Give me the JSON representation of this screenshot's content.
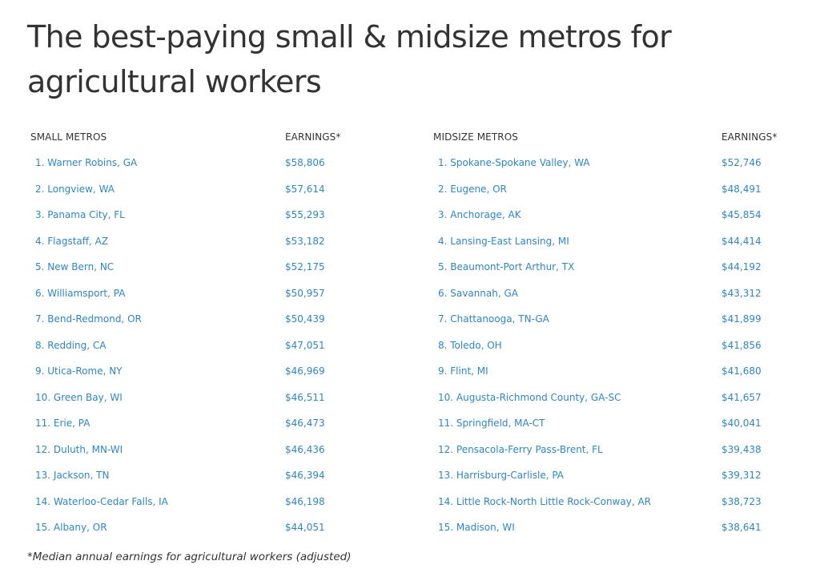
{
  "title": "The best-paying small & midsize metros for agricultural workers",
  "tables": [
    {
      "header_name": "SMALL METROS",
      "header_value": "EARNINGS*",
      "rows": [
        {
          "name": "1. Warner Robins, GA",
          "value": "$58,806"
        },
        {
          "name": "2. Longview, WA",
          "value": "$57,614"
        },
        {
          "name": "3. Panama City, FL",
          "value": "$55,293"
        },
        {
          "name": "4. Flagstaff, AZ",
          "value": "$53,182"
        },
        {
          "name": "5. New Bern, NC",
          "value": "$52,175"
        },
        {
          "name": "6. Williamsport, PA",
          "value": "$50,957"
        },
        {
          "name": "7. Bend-Redmond, OR",
          "value": "$50,439"
        },
        {
          "name": "8. Redding, CA",
          "value": "$47,051"
        },
        {
          "name": "9. Utica-Rome, NY",
          "value": "$46,969"
        },
        {
          "name": "10. Green Bay, WI",
          "value": "$46,511"
        },
        {
          "name": "11. Erie, PA",
          "value": "$46,473"
        },
        {
          "name": "12. Duluth, MN-WI",
          "value": "$46,436"
        },
        {
          "name": "13. Jackson, TN",
          "value": "$46,394"
        },
        {
          "name": "14. Waterloo-Cedar Falls, IA",
          "value": "$46,198"
        },
        {
          "name": "15. Albany, OR",
          "value": "$44,051"
        }
      ]
    },
    {
      "header_name": "MIDSIZE METROS",
      "header_value": "EARNINGS*",
      "rows": [
        {
          "name": "1. Spokane-Spokane Valley, WA",
          "value": "$52,746"
        },
        {
          "name": "2. Eugene, OR",
          "value": "$48,491"
        },
        {
          "name": "3. Anchorage, AK",
          "value": "$45,854"
        },
        {
          "name": "4. Lansing-East Lansing, MI",
          "value": "$44,414"
        },
        {
          "name": "5. Beaumont-Port Arthur, TX",
          "value": "$44,192"
        },
        {
          "name": "6. Savannah, GA",
          "value": "$43,312"
        },
        {
          "name": "7. Chattanooga, TN-GA",
          "value": "$41,899"
        },
        {
          "name": "8. Toledo, OH",
          "value": "$41,856"
        },
        {
          "name": "9. Flint, MI",
          "value": "$41,680"
        },
        {
          "name": "10. Augusta-Richmond County, GA-SC",
          "value": "$41,657"
        },
        {
          "name": "11. Springfield, MA-CT",
          "value": "$40,041"
        },
        {
          "name": "12. Pensacola-Ferry Pass-Brent, FL",
          "value": "$39,438"
        },
        {
          "name": "13. Harrisburg-Carlisle, PA",
          "value": "$39,312"
        },
        {
          "name": "14. Little Rock-North Little Rock-Conway, AR",
          "value": "$38,723"
        },
        {
          "name": "15. Madison, WI",
          "value": "$38,641"
        }
      ]
    }
  ],
  "footnote": "*Median annual earnings for agricultural workers (adjusted)",
  "colors": {
    "text": "#333333",
    "link": "#2f86c6",
    "background": "#ffffff"
  }
}
